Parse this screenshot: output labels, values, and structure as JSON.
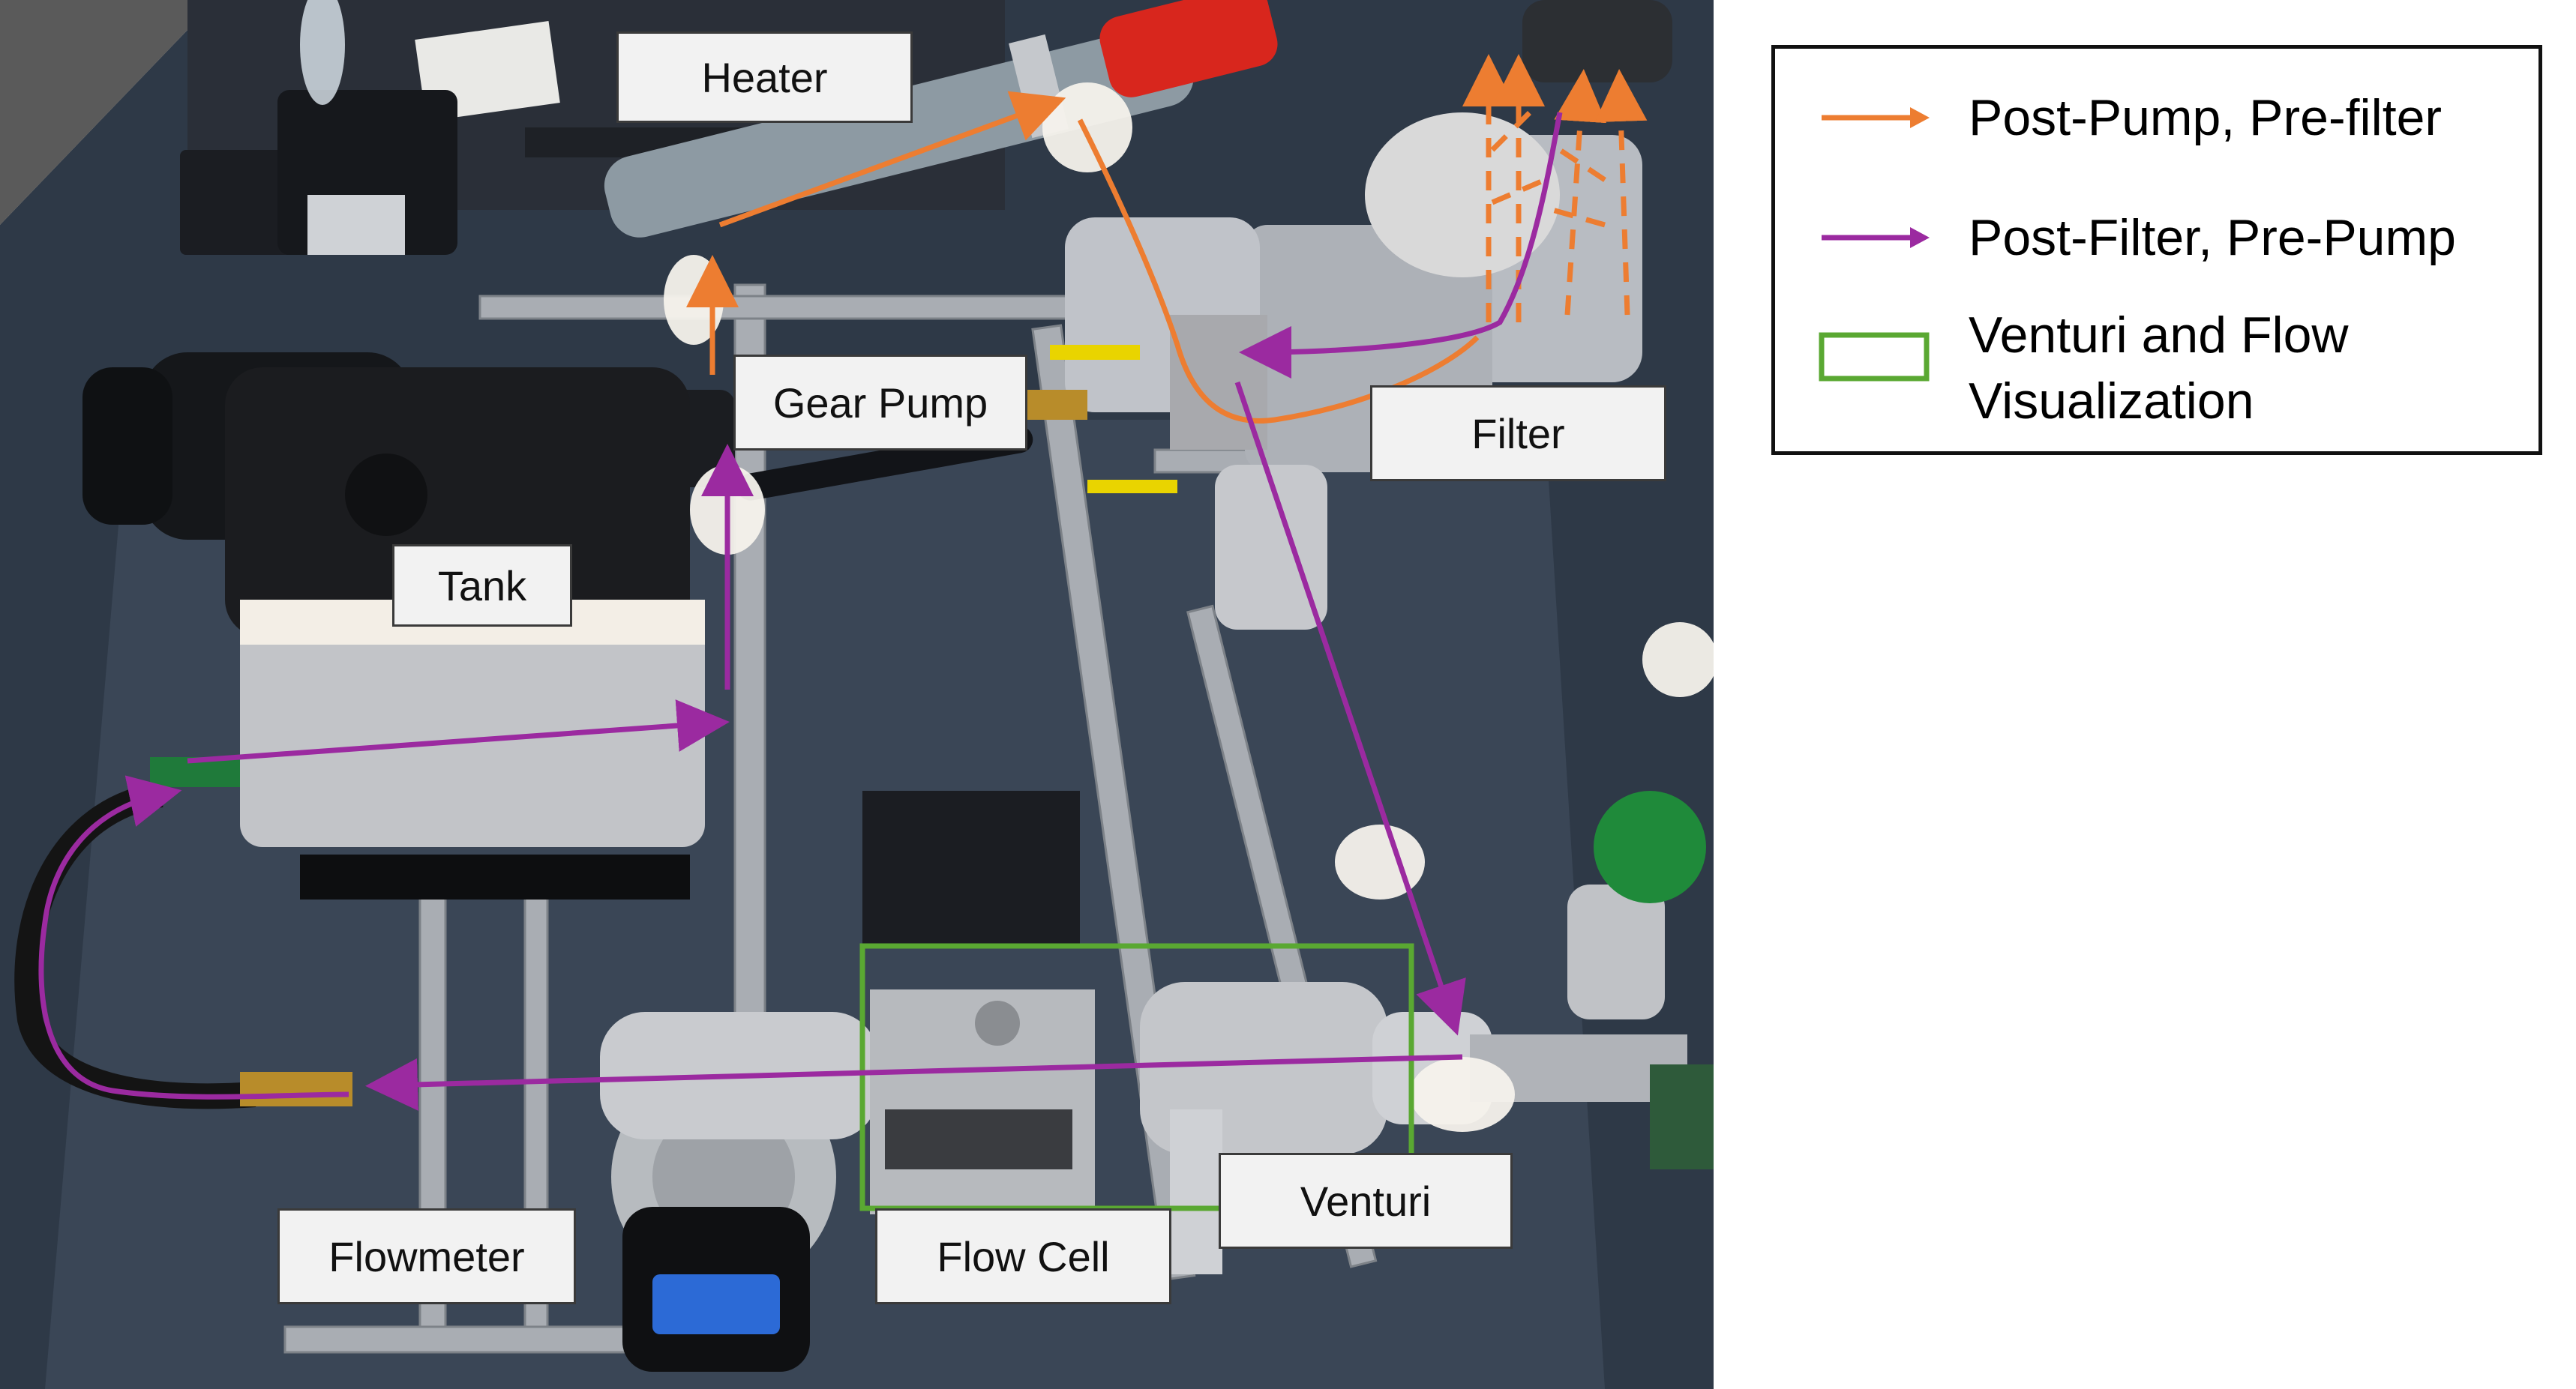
{
  "photo": {
    "labels": {
      "heater": "Heater",
      "gear_pump": "Gear Pump",
      "filter": "Filter",
      "tank": "Tank",
      "venturi": "Venturi",
      "flow_cell": "Flow Cell",
      "flowmeter": "Flowmeter"
    }
  },
  "legend": {
    "items": [
      {
        "label": "Post-Pump, Pre-filter",
        "symbol": "arrow",
        "color": "#ed7d31"
      },
      {
        "label": "Post-Filter, Pre-Pump",
        "symbol": "arrow",
        "color": "#9b2aa0"
      },
      {
        "label": "Venturi and Flow\nVisualization",
        "symbol": "box",
        "color": "#5aa832"
      }
    ]
  },
  "colors": {
    "orange_flow": "#ed7d31",
    "purple_flow": "#9b2aa0",
    "green_box": "#5aa832",
    "callout_bg": "#f2f2f2"
  }
}
